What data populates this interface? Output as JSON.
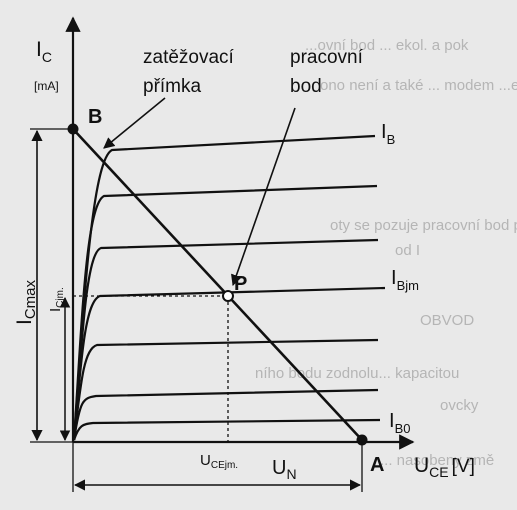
{
  "figure": {
    "axis_y": {
      "symbol": "I",
      "subscript": "C",
      "unit": "[mA]"
    },
    "axis_x": {
      "symbol": "U",
      "subscript": "CE",
      "unit": "[V]"
    },
    "load_line_label": {
      "line1": "zatěžovací",
      "line2": "přímka"
    },
    "operating_point_label": {
      "line1": "pracovní",
      "line2": "bod"
    },
    "points": {
      "B": "B",
      "P": "P",
      "A": "A"
    },
    "curve_labels": {
      "top": {
        "symbol": "I",
        "subscript": "B"
      },
      "mid": {
        "symbol": "I",
        "subscript": "Bjm"
      },
      "bottom": {
        "symbol": "I",
        "subscript": "B0"
      }
    },
    "dimensions": {
      "icmax": {
        "symbol": "I",
        "subscript": "Cmax"
      },
      "icjm": {
        "symbol": "I",
        "subscript": "Cjm."
      },
      "ucejm": {
        "symbol": "U",
        "subscript": "CEjm."
      },
      "un": {
        "symbol": "U",
        "subscript": "N"
      }
    },
    "colors": {
      "ink": "#111111",
      "paper": "#e9e9e9",
      "bleed": "#b5b5b5"
    }
  }
}
